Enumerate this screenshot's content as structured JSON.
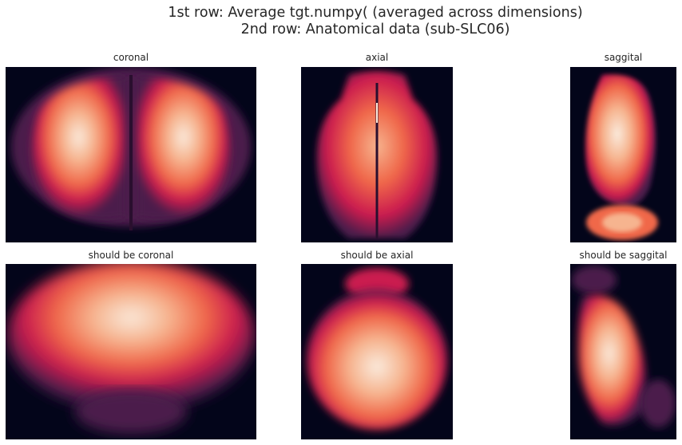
{
  "figure": {
    "title_line1": "1st row: Average tgt.numpy( (averaged across dimensions)",
    "title_line2": "2nd row: Anatomical data (sub-SLC06)"
  },
  "panels": {
    "top_coronal": {
      "title": "coronal"
    },
    "top_axial": {
      "title": "axial"
    },
    "top_saggital": {
      "title": "saggital"
    },
    "bottom_coronal": {
      "title": "should be coronal"
    },
    "bottom_axial": {
      "title": "should be axial"
    },
    "bottom_saggital": {
      "title": "should be saggital"
    }
  },
  "colormap": {
    "name": "rocket",
    "background": "#03051a",
    "dark": "#4c1d4b",
    "mid": "#cb1b4f",
    "orange": "#f0684a",
    "light": "#f6b48f",
    "bright": "#faebdd"
  }
}
